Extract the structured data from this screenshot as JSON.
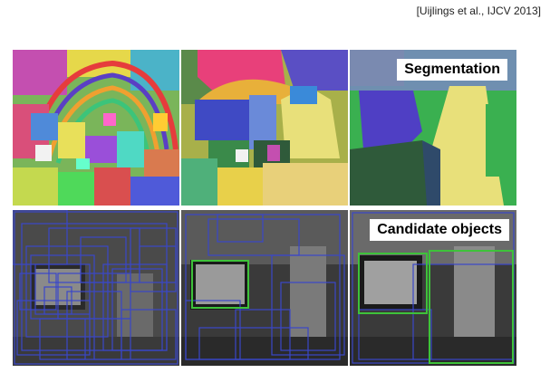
{
  "citation": "[Uijlings et al., IJCV 2013]",
  "labels": {
    "segmentation": "Segmentation",
    "candidate_objects": "Candidate objects"
  },
  "colors": {
    "box_blue": "#3a47c9",
    "box_green": "#3ec23a"
  }
}
